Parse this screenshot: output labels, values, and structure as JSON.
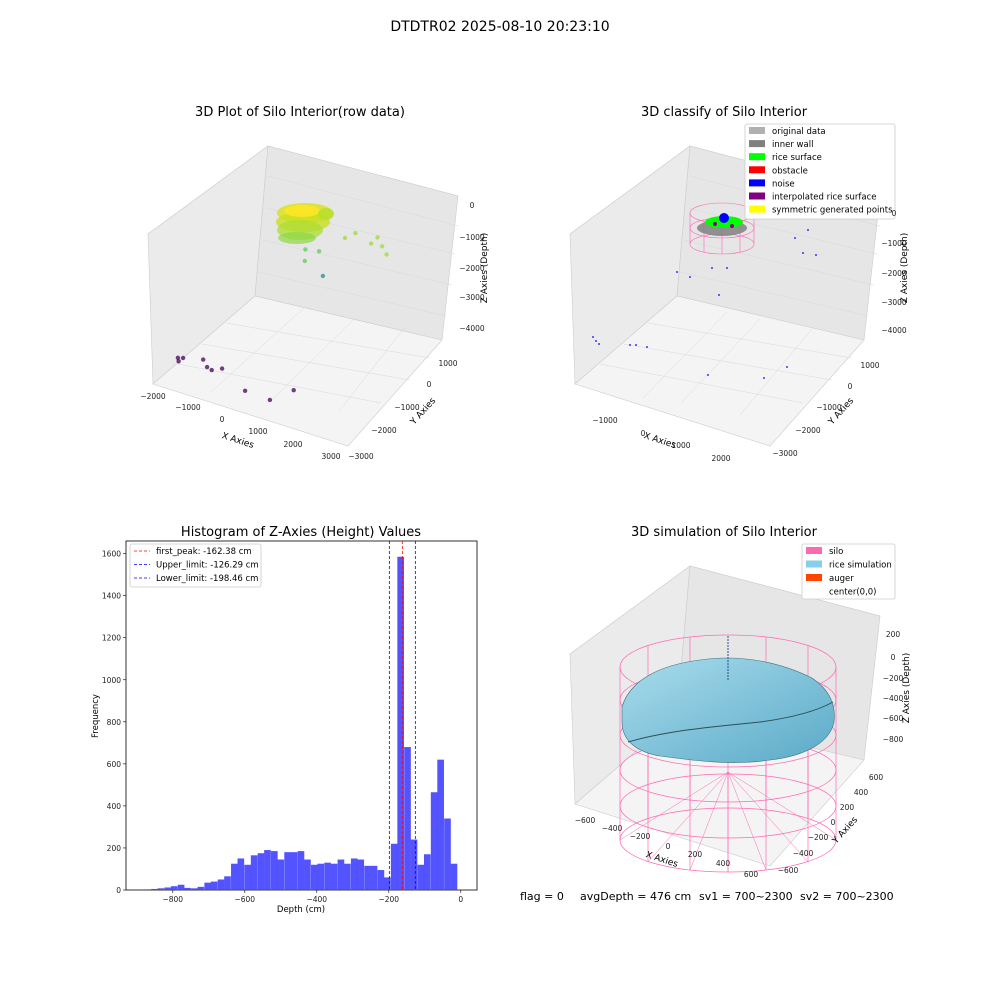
{
  "figure": {
    "suptitle": "DTDTR02 2025-08-10 20:23:10",
    "footer": {
      "flag": "flag = 0",
      "avg_depth": "avgDepth = 476 cm",
      "sv1": "sv1 = 700~2300",
      "sv2": "sv2 = 700~2300"
    }
  },
  "chart_data": [
    {
      "type": "scatter",
      "title": "3D Plot of Silo Interior(row data)",
      "xlabel": "X Axies",
      "ylabel": "Y Axies",
      "zlabel": "Z Axies (Depth)",
      "x_ticks": [
        "−2000",
        "−1000",
        "0",
        "1000",
        "2000",
        "3000"
      ],
      "y_ticks": [
        "1000",
        "0",
        "−1000",
        "−2000",
        "−3000"
      ],
      "z_ticks": [
        "0",
        "−1000",
        "−2000",
        "−3000",
        "−4000"
      ],
      "xlim": [
        -2000,
        3000
      ],
      "ylim": [
        -3000,
        1000
      ],
      "zlim": [
        -4300,
        0
      ],
      "grid": true,
      "colormap": "viridis",
      "points": [
        {
          "x": -1950,
          "y": -2100,
          "z": -4100
        },
        {
          "x": -1850,
          "y": -2050,
          "z": -4100
        },
        {
          "x": -1900,
          "y": -2150,
          "z": -4150
        },
        {
          "x": -1400,
          "y": -1950,
          "z": -4050
        },
        {
          "x": -1200,
          "y": -2100,
          "z": -4100
        },
        {
          "x": -1050,
          "y": -2150,
          "z": -4100
        },
        {
          "x": -850,
          "y": -2050,
          "z": -4050
        },
        {
          "x": 100,
          "y": -2600,
          "z": -4000
        },
        {
          "x": 800,
          "y": -2700,
          "z": -3950
        },
        {
          "x": 1150,
          "y": -2300,
          "z": -3800
        },
        {
          "x": 200,
          "y": 300,
          "z": -2500
        },
        {
          "x": -200,
          "y": 200,
          "z": -2150
        },
        {
          "x": -250,
          "y": 300,
          "z": -1900
        },
        {
          "x": 200,
          "y": 150,
          "z": -1700
        },
        {
          "x": 700,
          "y": 400,
          "z": -1300
        },
        {
          "x": 900,
          "y": 500,
          "z": -1150
        },
        {
          "x": 1500,
          "y": 200,
          "z": -1050
        },
        {
          "x": 1600,
          "y": 300,
          "z": -900
        },
        {
          "x": 1650,
          "y": 400,
          "z": -1200
        },
        {
          "x": 1800,
          "y": 350,
          "z": -1350
        }
      ]
    },
    {
      "type": "scatter",
      "title": "3D classify of Silo Interior",
      "xlabel": "X Axies",
      "ylabel": "Y Axies",
      "zlabel": "Z Axies (Depth)",
      "x_ticks": [
        "−1000",
        "0",
        "1000",
        "2000"
      ],
      "y_ticks": [
        "1000",
        "0",
        "−1000",
        "−2000",
        "−3000"
      ],
      "z_ticks": [
        "0",
        "−1000",
        "−2000",
        "−3000",
        "−4000"
      ],
      "xlim": [
        -1500,
        2600
      ],
      "ylim": [
        -3000,
        1000
      ],
      "zlim": [
        -4300,
        0
      ],
      "grid": true,
      "legend_position": "top-right",
      "legend": [
        {
          "label": "original data",
          "color": "#b0b0b0"
        },
        {
          "label": "inner wall",
          "color": "#808080"
        },
        {
          "label": "rice surface",
          "color": "#00ff00"
        },
        {
          "label": "obstacle",
          "color": "#ff0000"
        },
        {
          "label": "noise",
          "color": "#0000ff"
        },
        {
          "label": "interpolated rice surface",
          "color": "#800080"
        },
        {
          "label": "symmetric generated points",
          "color": "#ffff00"
        }
      ]
    },
    {
      "type": "bar",
      "title": "Histogram of Z-Axies (Height) Values",
      "xlabel": "Depth (cm)",
      "ylabel": "Frequency",
      "xlim": [
        -930,
        45
      ],
      "ylim": [
        0,
        1660
      ],
      "x_ticks": [
        -800,
        -600,
        -400,
        -200,
        0
      ],
      "y_ticks": [
        0,
        200,
        400,
        600,
        800,
        1000,
        1200,
        1400,
        1600
      ],
      "bar_color": "#4040ff",
      "bin_width": 18.5,
      "bins": [
        {
          "x": -870,
          "y": 3
        },
        {
          "x": -851,
          "y": 5
        },
        {
          "x": -833,
          "y": 8
        },
        {
          "x": -814,
          "y": 12
        },
        {
          "x": -796,
          "y": 18
        },
        {
          "x": -777,
          "y": 25
        },
        {
          "x": -759,
          "y": 10
        },
        {
          "x": -740,
          "y": 8
        },
        {
          "x": -722,
          "y": 15
        },
        {
          "x": -703,
          "y": 35
        },
        {
          "x": -685,
          "y": 40
        },
        {
          "x": -666,
          "y": 50
        },
        {
          "x": -648,
          "y": 65
        },
        {
          "x": -629,
          "y": 125
        },
        {
          "x": -611,
          "y": 150
        },
        {
          "x": -592,
          "y": 120
        },
        {
          "x": -574,
          "y": 165
        },
        {
          "x": -555,
          "y": 175
        },
        {
          "x": -537,
          "y": 190
        },
        {
          "x": -518,
          "y": 185
        },
        {
          "x": -500,
          "y": 145
        },
        {
          "x": -481,
          "y": 180
        },
        {
          "x": -463,
          "y": 180
        },
        {
          "x": -444,
          "y": 185
        },
        {
          "x": -426,
          "y": 145
        },
        {
          "x": -407,
          "y": 120
        },
        {
          "x": -389,
          "y": 125
        },
        {
          "x": -370,
          "y": 130
        },
        {
          "x": -352,
          "y": 125
        },
        {
          "x": -333,
          "y": 145
        },
        {
          "x": -315,
          "y": 125
        },
        {
          "x": -296,
          "y": 150
        },
        {
          "x": -278,
          "y": 145
        },
        {
          "x": -259,
          "y": 115
        },
        {
          "x": -241,
          "y": 115
        },
        {
          "x": -222,
          "y": 95
        },
        {
          "x": -204,
          "y": 60
        },
        {
          "x": -185,
          "y": 220
        },
        {
          "x": -167,
          "y": 1585
        },
        {
          "x": -148,
          "y": 680
        },
        {
          "x": -130,
          "y": 240
        },
        {
          "x": -111,
          "y": 120
        },
        {
          "x": -93,
          "y": 170
        },
        {
          "x": -74,
          "y": 465
        },
        {
          "x": -56,
          "y": 620
        },
        {
          "x": -37,
          "y": 340
        },
        {
          "x": -19,
          "y": 125
        }
      ],
      "vlines": [
        {
          "x": -162.38,
          "color": "#ff0000",
          "label": "first_peak: -162.38 cm"
        },
        {
          "x": -126.29,
          "color": "#0000ff",
          "label": "Upper_limit: -126.29 cm"
        },
        {
          "x": -198.46,
          "color": "#0000ff",
          "label": "Lower_limit: -198.46 cm"
        }
      ],
      "legend_position": "top-left"
    },
    {
      "type": "surface",
      "title": "3D simulation of Silo Interior",
      "xlabel": "X Axies",
      "ylabel": "Y Axies",
      "zlabel": "Z Axies (Depth)",
      "x_ticks": [
        "−600",
        "−400",
        "−200",
        "0",
        "200",
        "400",
        "600"
      ],
      "y_ticks": [
        "600",
        "400",
        "200",
        "0",
        "−200",
        "−400",
        "−600"
      ],
      "z_ticks": [
        "200",
        "0",
        "−200",
        "−400",
        "−600",
        "−800"
      ],
      "xlim": [
        -650,
        650
      ],
      "ylim": [
        -650,
        650
      ],
      "zlim": [
        -950,
        300
      ],
      "grid": true,
      "legend_position": "top-right",
      "legend": [
        {
          "label": "silo",
          "color": "#ff69b4"
        },
        {
          "label": "rice simulation",
          "color": "#87ceeb"
        },
        {
          "label": "auger",
          "color": "#ff4500"
        },
        {
          "label": "center(0,0)",
          "color": "#ffffff"
        }
      ]
    }
  ]
}
